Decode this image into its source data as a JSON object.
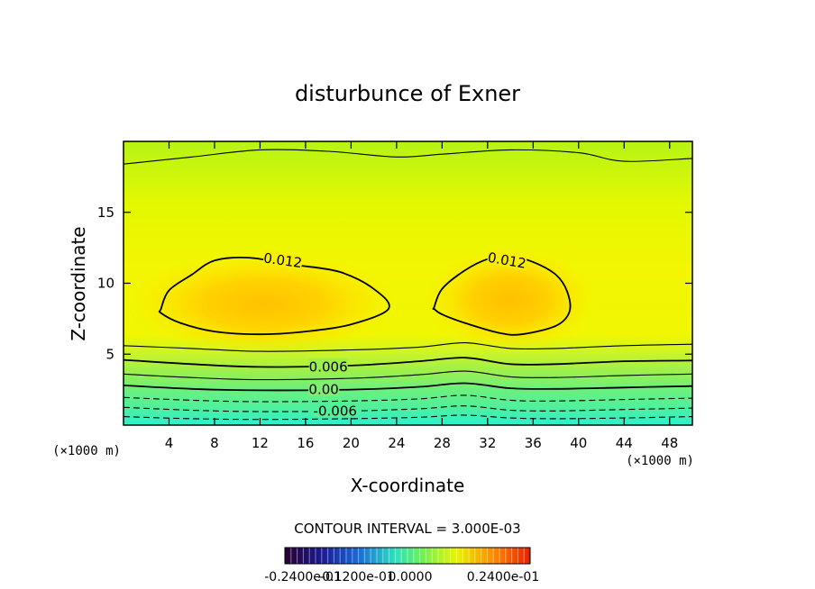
{
  "chart_data": {
    "type": "contour",
    "title": "disturbunce of Exner",
    "xlabel": "X-coordinate",
    "ylabel": "Z-coordinate",
    "x_unit": "(×1000 m)",
    "y_unit": "(×1000 m)",
    "xlim": [
      0,
      50
    ],
    "ylim": [
      0,
      20
    ],
    "x_ticks": [
      4,
      8,
      12,
      16,
      20,
      24,
      28,
      32,
      36,
      40,
      44,
      48
    ],
    "y_ticks": [
      5,
      10,
      15
    ],
    "contour_interval_text": "CONTOUR INTERVAL = 3.000E-03",
    "contour_interval": 0.003,
    "contour_labels": [
      {
        "text": "0.012",
        "x": 14,
        "z": 11.6
      },
      {
        "text": "0.012",
        "x": 33.7,
        "z": 11.6
      },
      {
        "text": "0.006",
        "x": 18,
        "z": 4.1
      },
      {
        "text": "0.00",
        "x": 17.6,
        "z": 2.5
      },
      {
        "text": "-0.006",
        "x": 18.6,
        "z": 1.0
      }
    ],
    "contour_levels": [
      {
        "value": -0.009,
        "style": "dashed",
        "points": [
          [
            0,
            0.6
          ],
          [
            6,
            0.45
          ],
          [
            12,
            0.4
          ],
          [
            20,
            0.45
          ],
          [
            26,
            0.55
          ],
          [
            30,
            0.7
          ],
          [
            34,
            0.5
          ],
          [
            38,
            0.45
          ],
          [
            44,
            0.5
          ],
          [
            50,
            0.6
          ]
        ]
      },
      {
        "value": -0.006,
        "style": "dashed",
        "points": [
          [
            0,
            1.25
          ],
          [
            6,
            1.05
          ],
          [
            12,
            0.95
          ],
          [
            20,
            1.0
          ],
          [
            26,
            1.15
          ],
          [
            30,
            1.35
          ],
          [
            34,
            1.05
          ],
          [
            38,
            1.0
          ],
          [
            44,
            1.1
          ],
          [
            50,
            1.2
          ]
        ]
      },
      {
        "value": -0.003,
        "style": "dashed",
        "points": [
          [
            0,
            1.95
          ],
          [
            6,
            1.75
          ],
          [
            12,
            1.65
          ],
          [
            20,
            1.7
          ],
          [
            26,
            1.85
          ],
          [
            30,
            2.1
          ],
          [
            34,
            1.75
          ],
          [
            38,
            1.7
          ],
          [
            44,
            1.8
          ],
          [
            50,
            1.9
          ]
        ]
      },
      {
        "value": 0.0,
        "style": "solid",
        "points": [
          [
            0,
            2.8
          ],
          [
            6,
            2.55
          ],
          [
            12,
            2.45
          ],
          [
            20,
            2.5
          ],
          [
            26,
            2.7
          ],
          [
            30,
            2.95
          ],
          [
            34,
            2.6
          ],
          [
            38,
            2.55
          ],
          [
            44,
            2.65
          ],
          [
            50,
            2.75
          ]
        ]
      },
      {
        "value": 0.003,
        "style": "solid",
        "points": [
          [
            0,
            3.6
          ],
          [
            6,
            3.35
          ],
          [
            12,
            3.2
          ],
          [
            20,
            3.3
          ],
          [
            26,
            3.55
          ],
          [
            30,
            3.8
          ],
          [
            34,
            3.4
          ],
          [
            38,
            3.35
          ],
          [
            44,
            3.5
          ],
          [
            50,
            3.6
          ]
        ]
      },
      {
        "value": 0.006,
        "style": "solid",
        "points": [
          [
            0,
            4.6
          ],
          [
            6,
            4.3
          ],
          [
            12,
            4.1
          ],
          [
            20,
            4.2
          ],
          [
            26,
            4.5
          ],
          [
            30,
            4.75
          ],
          [
            34,
            4.3
          ],
          [
            38,
            4.3
          ],
          [
            44,
            4.5
          ],
          [
            50,
            4.55
          ]
        ]
      },
      {
        "value": 0.009,
        "style": "solid",
        "points": [
          [
            0,
            5.6
          ],
          [
            6,
            5.4
          ],
          [
            12,
            5.2
          ],
          [
            20,
            5.3
          ],
          [
            26,
            5.5
          ],
          [
            30,
            5.8
          ],
          [
            34,
            5.4
          ],
          [
            38,
            5.4
          ],
          [
            44,
            5.6
          ],
          [
            50,
            5.7
          ]
        ]
      },
      {
        "value": 0.009,
        "style": "solid",
        "points": [
          [
            0,
            18.4
          ],
          [
            6,
            18.9
          ],
          [
            12,
            19.4
          ],
          [
            18,
            19.3
          ],
          [
            24,
            18.9
          ],
          [
            28,
            19.1
          ],
          [
            34,
            19.4
          ],
          [
            40,
            19.2
          ],
          [
            44,
            18.6
          ],
          [
            50,
            18.8
          ]
        ]
      },
      {
        "value": 0.012,
        "style": "solid",
        "closed": true,
        "points": [
          [
            3.3,
            8.2
          ],
          [
            4,
            9.5
          ],
          [
            6,
            10.6
          ],
          [
            8,
            11.6
          ],
          [
            11,
            11.8
          ],
          [
            15,
            11.3
          ],
          [
            19,
            10.8
          ],
          [
            22,
            9.6
          ],
          [
            23.3,
            8.2
          ],
          [
            20,
            7.1
          ],
          [
            16,
            6.6
          ],
          [
            12,
            6.4
          ],
          [
            8,
            6.6
          ],
          [
            5,
            7.2
          ],
          [
            3.3,
            7.9
          ]
        ]
      },
      {
        "value": 0.012,
        "style": "solid",
        "closed": true,
        "points": [
          [
            27.3,
            8.3
          ],
          [
            28,
            9.6
          ],
          [
            30,
            10.9
          ],
          [
            32,
            11.7
          ],
          [
            34,
            11.9
          ],
          [
            36,
            11.5
          ],
          [
            38,
            10.6
          ],
          [
            39,
            9.4
          ],
          [
            39.2,
            8.0
          ],
          [
            38,
            7.0
          ],
          [
            35,
            6.4
          ],
          [
            33,
            6.5
          ],
          [
            30,
            7.2
          ],
          [
            28,
            7.8
          ],
          [
            27.3,
            8.2
          ]
        ]
      }
    ],
    "colorbar": {
      "min_label": "-0.2400e-01",
      "center_label": "-0.1200e-01",
      "mid_label": "0.0000",
      "max_label": "0.2400e-01",
      "range": [
        -0.024,
        0.024
      ]
    }
  },
  "colors": {
    "background": "#ffffff",
    "outline": "#000000"
  }
}
